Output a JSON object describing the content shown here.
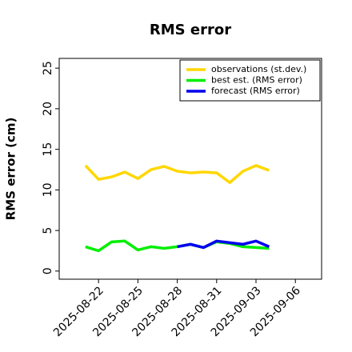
{
  "chart_data": {
    "type": "line",
    "title": "RMS error",
    "ylabel": "RMS error (cm)",
    "x": [
      "2025-08-21",
      "2025-08-22",
      "2025-08-23",
      "2025-08-24",
      "2025-08-25",
      "2025-08-26",
      "2025-08-27",
      "2025-08-28",
      "2025-08-29",
      "2025-08-30",
      "2025-08-31",
      "2025-09-01",
      "2025-09-02",
      "2025-09-03",
      "2025-09-04"
    ],
    "series": [
      {
        "name": "observations (st.dev.)",
        "color": "#ffd700",
        "values": [
          13.0,
          11.3,
          11.6,
          12.2,
          11.4,
          12.5,
          12.9,
          12.3,
          12.1,
          12.2,
          12.1,
          10.9,
          12.3,
          13.0,
          12.4
        ]
      },
      {
        "name": "best est. (RMS error)",
        "color": "#00ee00",
        "values": [
          3.0,
          2.5,
          3.6,
          3.7,
          2.6,
          3.0,
          2.8,
          3.0,
          3.3,
          2.9,
          3.6,
          3.4,
          3.0,
          2.9,
          2.8
        ]
      },
      {
        "name": "forecast (RMS error)",
        "color": "#0000ee",
        "values": [
          null,
          null,
          null,
          null,
          null,
          null,
          null,
          3.0,
          3.3,
          2.9,
          3.7,
          3.5,
          3.3,
          3.7,
          3.0
        ]
      }
    ],
    "xlim": [
      "2025-08-19",
      "2025-09-08"
    ],
    "xticks": [
      "2025-08-22",
      "2025-08-25",
      "2025-08-28",
      "2025-08-31",
      "2025-09-03",
      "2025-09-06"
    ],
    "highlight_xtick": "2025-08-28",
    "highlight_color": "#228b22",
    "ylim": [
      -1,
      26.2
    ],
    "yticks": [
      0,
      5,
      10,
      15,
      20,
      25
    ],
    "legend": "upper right",
    "grid": false
  }
}
